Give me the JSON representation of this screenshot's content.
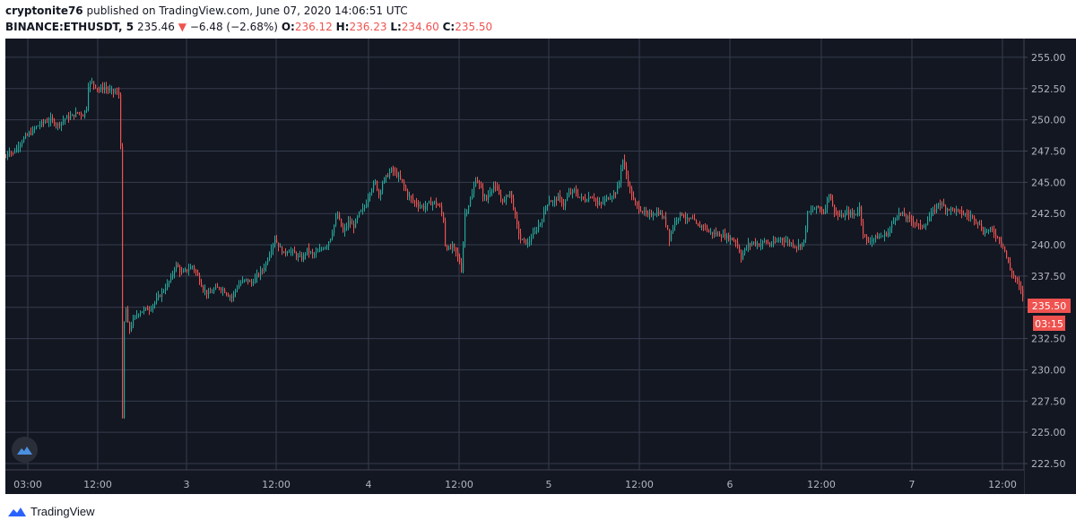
{
  "header": {
    "publisher": "cryptonite76",
    "published_text": "published on TradingView.com, June 07, 2020 14:06:51 UTC",
    "symbol": "BINANCE:ETHUSDT, 5",
    "last": "235.46",
    "change": "−6.48 (−2.68%)",
    "open_label": "O:",
    "open": "236.12",
    "high_label": "H:",
    "high": "236.23",
    "low_label": "L:",
    "low": "234.60",
    "close_label": "C:",
    "close": "235.50"
  },
  "price_axis": {
    "labels": [
      "255.00",
      "252.50",
      "250.00",
      "247.50",
      "245.00",
      "242.50",
      "240.00",
      "237.50",
      "235.00",
      "232.50",
      "230.00",
      "227.50",
      "225.00",
      "222.50"
    ],
    "current_price": "235.50",
    "countdown": "03:15"
  },
  "time_axis": {
    "labels": [
      "03:00",
      "12:00",
      "3",
      "12:00",
      "4",
      "12:00",
      "5",
      "12:00",
      "6",
      "12:00",
      "7",
      "12:00"
    ]
  },
  "footer": {
    "brand": "TradingView"
  },
  "colors": {
    "background": "#131722",
    "grid": "#363c4e",
    "up": "#26a69a",
    "down": "#ef5350",
    "text": "#b2b5be"
  },
  "chart_data": {
    "type": "candlestick",
    "title": "BINANCE:ETHUSDT, 5",
    "ylim": [
      222.0,
      256.5
    ],
    "y_ticks": [
      255.0,
      252.5,
      250.0,
      247.5,
      245.0,
      242.5,
      240.0,
      237.5,
      235.0,
      232.5,
      230.0,
      227.5,
      225.0,
      222.5
    ],
    "x_ticks": [
      "03:00",
      "12:00",
      "3",
      "12:00",
      "4",
      "12:00",
      "5",
      "12:00",
      "6",
      "12:00",
      "7",
      "12:00"
    ],
    "grid": true,
    "last_price": 235.5,
    "path": [
      [
        0,
        247.0
      ],
      [
        3,
        247.6
      ],
      [
        8,
        247.3
      ],
      [
        14,
        248.0
      ],
      [
        20,
        248.5
      ],
      [
        28,
        249.0
      ],
      [
        35,
        249.5
      ],
      [
        42,
        249.8
      ],
      [
        50,
        250.0
      ],
      [
        58,
        249.6
      ],
      [
        66,
        250.1
      ],
      [
        74,
        250.3
      ],
      [
        80,
        250.6
      ],
      [
        86,
        250.4
      ],
      [
        90,
        251.0
      ],
      [
        92,
        252.8
      ],
      [
        96,
        253.0
      ],
      [
        100,
        252.7
      ],
      [
        104,
        252.4
      ],
      [
        110,
        252.6
      ],
      [
        116,
        252.3
      ],
      [
        122,
        252.2
      ],
      [
        127,
        252.0
      ],
      [
        129,
        244.0
      ],
      [
        130,
        226.0
      ],
      [
        131,
        232.0
      ],
      [
        133,
        235.5
      ],
      [
        137,
        233.0
      ],
      [
        142,
        234.0
      ],
      [
        148,
        234.6
      ],
      [
        154,
        234.8
      ],
      [
        160,
        234.9
      ],
      [
        166,
        235.4
      ],
      [
        172,
        236.0
      ],
      [
        178,
        236.6
      ],
      [
        184,
        237.3
      ],
      [
        189,
        238.4
      ],
      [
        192,
        238.2
      ],
      [
        196,
        237.7
      ],
      [
        202,
        238.0
      ],
      [
        208,
        238.3
      ],
      [
        214,
        237.5
      ],
      [
        220,
        236.5
      ],
      [
        226,
        236.0
      ],
      [
        232,
        236.4
      ],
      [
        238,
        236.6
      ],
      [
        244,
        236.3
      ],
      [
        248,
        236.0
      ],
      [
        252,
        235.8
      ],
      [
        256,
        236.4
      ],
      [
        262,
        237.0
      ],
      [
        268,
        237.2
      ],
      [
        274,
        236.9
      ],
      [
        280,
        237.5
      ],
      [
        286,
        238.0
      ],
      [
        290,
        238.5
      ],
      [
        295,
        239.6
      ],
      [
        300,
        240.5
      ],
      [
        305,
        239.8
      ],
      [
        310,
        239.3
      ],
      [
        315,
        239.6
      ],
      [
        320,
        239.4
      ],
      [
        326,
        239.0
      ],
      [
        330,
        238.9
      ],
      [
        336,
        239.6
      ],
      [
        342,
        239.2
      ],
      [
        348,
        239.4
      ],
      [
        354,
        239.8
      ],
      [
        358,
        240.0
      ],
      [
        362,
        240.6
      ],
      [
        366,
        241.6
      ],
      [
        370,
        242.4
      ],
      [
        376,
        241.0
      ],
      [
        382,
        241.8
      ],
      [
        388,
        241.5
      ],
      [
        394,
        242.5
      ],
      [
        400,
        243.0
      ],
      [
        406,
        244.3
      ],
      [
        412,
        245.0
      ],
      [
        416,
        244.0
      ],
      [
        420,
        245.0
      ],
      [
        425,
        245.5
      ],
      [
        430,
        246.0
      ],
      [
        436,
        245.6
      ],
      [
        442,
        245.0
      ],
      [
        448,
        244.0
      ],
      [
        454,
        243.5
      ],
      [
        460,
        243.2
      ],
      [
        466,
        243.0
      ],
      [
        472,
        243.3
      ],
      [
        478,
        243.4
      ],
      [
        484,
        243.0
      ],
      [
        488,
        242.0
      ],
      [
        490,
        240.0
      ],
      [
        494,
        239.6
      ],
      [
        498,
        239.9
      ],
      [
        502,
        239.4
      ],
      [
        506,
        238.6
      ],
      [
        508,
        238.0
      ],
      [
        512,
        242.5
      ],
      [
        516,
        243.2
      ],
      [
        520,
        244.0
      ],
      [
        524,
        245.3
      ],
      [
        528,
        244.8
      ],
      [
        532,
        244.0
      ],
      [
        536,
        243.6
      ],
      [
        540,
        244.4
      ],
      [
        544,
        244.7
      ],
      [
        548,
        244.3
      ],
      [
        552,
        243.7
      ],
      [
        556,
        243.5
      ],
      [
        562,
        244.3
      ],
      [
        566,
        243.0
      ],
      [
        570,
        241.5
      ],
      [
        574,
        240.4
      ],
      [
        578,
        240.3
      ],
      [
        582,
        240.1
      ],
      [
        586,
        240.6
      ],
      [
        590,
        241.0
      ],
      [
        594,
        241.6
      ],
      [
        598,
        242.0
      ],
      [
        602,
        243.1
      ],
      [
        606,
        243.6
      ],
      [
        610,
        243.4
      ],
      [
        616,
        243.8
      ],
      [
        622,
        243.2
      ],
      [
        628,
        244.1
      ],
      [
        634,
        244.3
      ],
      [
        640,
        243.8
      ],
      [
        646,
        243.6
      ],
      [
        652,
        243.9
      ],
      [
        656,
        243.8
      ],
      [
        660,
        243.2
      ],
      [
        664,
        243.3
      ],
      [
        668,
        243.6
      ],
      [
        672,
        243.8
      ],
      [
        676,
        244.0
      ],
      [
        680,
        244.2
      ],
      [
        684,
        245.0
      ],
      [
        686,
        246.2
      ],
      [
        688,
        246.8
      ],
      [
        692,
        245.6
      ],
      [
        696,
        244.4
      ],
      [
        700,
        243.5
      ],
      [
        704,
        243.1
      ],
      [
        710,
        242.7
      ],
      [
        716,
        242.3
      ],
      [
        722,
        242.5
      ],
      [
        728,
        242.6
      ],
      [
        734,
        242.1
      ],
      [
        738,
        241.3
      ],
      [
        740,
        240.5
      ],
      [
        744,
        241.5
      ],
      [
        748,
        242.2
      ],
      [
        754,
        242.5
      ],
      [
        760,
        242.0
      ],
      [
        766,
        242.0
      ],
      [
        772,
        241.4
      ],
      [
        778,
        241.6
      ],
      [
        784,
        241.0
      ],
      [
        790,
        240.9
      ],
      [
        796,
        240.8
      ],
      [
        802,
        240.7
      ],
      [
        808,
        240.5
      ],
      [
        814,
        240.3
      ],
      [
        818,
        239.5
      ],
      [
        820,
        239.0
      ],
      [
        824,
        239.6
      ],
      [
        828,
        240.0
      ],
      [
        834,
        240.2
      ],
      [
        840,
        240.0
      ],
      [
        846,
        240.3
      ],
      [
        852,
        240.0
      ],
      [
        858,
        240.2
      ],
      [
        864,
        240.5
      ],
      [
        870,
        240.3
      ],
      [
        876,
        240.1
      ],
      [
        882,
        239.9
      ],
      [
        886,
        240.0
      ],
      [
        890,
        240.3
      ],
      [
        894,
        242.5
      ],
      [
        900,
        242.8
      ],
      [
        906,
        243.0
      ],
      [
        912,
        242.6
      ],
      [
        916,
        243.6
      ],
      [
        918,
        244.2
      ],
      [
        922,
        243.1
      ],
      [
        926,
        242.5
      ],
      [
        932,
        242.2
      ],
      [
        938,
        242.6
      ],
      [
        944,
        242.4
      ],
      [
        948,
        242.5
      ],
      [
        952,
        243.0
      ],
      [
        956,
        241.0
      ],
      [
        960,
        240.2
      ],
      [
        966,
        240.5
      ],
      [
        972,
        240.6
      ],
      [
        978,
        240.7
      ],
      [
        984,
        241.0
      ],
      [
        988,
        241.6
      ],
      [
        992,
        242.3
      ],
      [
        996,
        242.5
      ],
      [
        1000,
        242.4
      ],
      [
        1004,
        242.2
      ],
      [
        1008,
        242.0
      ],
      [
        1012,
        241.9
      ],
      [
        1016,
        241.7
      ],
      [
        1020,
        241.4
      ],
      [
        1024,
        241.6
      ],
      [
        1028,
        241.9
      ],
      [
        1032,
        242.5
      ],
      [
        1036,
        242.8
      ],
      [
        1040,
        243.4
      ],
      [
        1044,
        243.2
      ],
      [
        1048,
        242.9
      ],
      [
        1052,
        242.9
      ],
      [
        1058,
        242.8
      ],
      [
        1064,
        242.6
      ],
      [
        1070,
        242.4
      ],
      [
        1076,
        242.3
      ],
      [
        1082,
        242.0
      ],
      [
        1086,
        241.6
      ],
      [
        1090,
        241.0
      ],
      [
        1094,
        241.2
      ],
      [
        1100,
        241.1
      ],
      [
        1106,
        240.6
      ],
      [
        1112,
        240.0
      ],
      [
        1116,
        239.0
      ],
      [
        1120,
        238.0
      ],
      [
        1124,
        237.5
      ],
      [
        1128,
        237.0
      ],
      [
        1132,
        236.3
      ],
      [
        1136,
        235.5
      ]
    ]
  }
}
